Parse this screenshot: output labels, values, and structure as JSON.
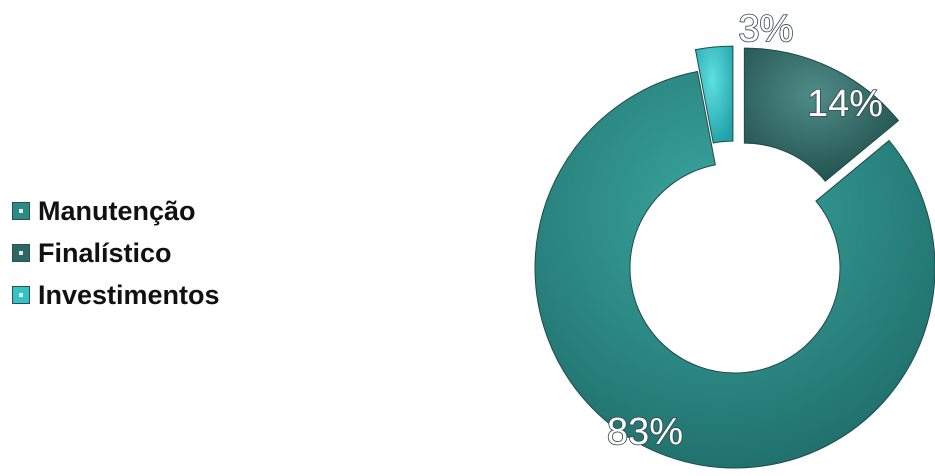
{
  "chart_data": {
    "type": "pie",
    "variant": "donut-exploded",
    "categories": [
      "Manutenção",
      "Finalístico",
      "Investimentos"
    ],
    "values": [
      83,
      14,
      3
    ],
    "data_labels": [
      "83%",
      "14%",
      "3%"
    ],
    "colors": [
      "#2a8a85",
      "#2d6763",
      "#36c3c8"
    ],
    "title": "",
    "legend_position": "left"
  }
}
